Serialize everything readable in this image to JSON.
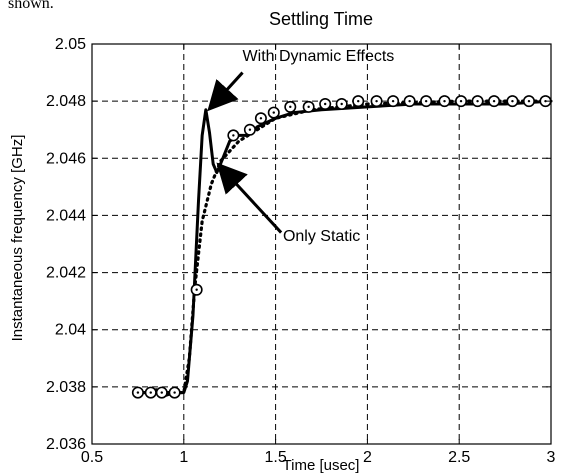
{
  "page": {
    "top_fragment": "shown."
  },
  "chart_data": {
    "type": "line",
    "title": "Settling Time",
    "xlabel": "Time [usec]",
    "ylabel": "Instantaneous frequency [GHz]",
    "xlim": [
      0.5,
      3
    ],
    "ylim": [
      2.036,
      2.05
    ],
    "x_ticks": [
      0.5,
      1,
      1.5,
      2,
      2.5,
      3
    ],
    "x_tick_labels": [
      "0.5",
      "1",
      "1.5",
      "2",
      "2.5",
      "3"
    ],
    "y_ticks": [
      2.036,
      2.038,
      2.04,
      2.042,
      2.044,
      2.046,
      2.048,
      2.05
    ],
    "y_tick_labels": [
      "2.036",
      "2.038",
      "2.04",
      "2.042",
      "2.044",
      "2.046",
      "2.048",
      "2.05"
    ],
    "grid": true,
    "series": [
      {
        "name": "With Dynamic Effects",
        "style": "solid",
        "color": "#000000",
        "points": [
          [
            0.75,
            2.0378
          ],
          [
            0.8,
            2.0378
          ],
          [
            0.85,
            2.0379
          ],
          [
            0.9,
            2.0377
          ],
          [
            0.95,
            2.0378
          ],
          [
            1.0,
            2.0378
          ],
          [
            1.02,
            2.0382
          ],
          [
            1.05,
            2.0405
          ],
          [
            1.08,
            2.0445
          ],
          [
            1.1,
            2.0468
          ],
          [
            1.12,
            2.0477
          ],
          [
            1.14,
            2.0469
          ],
          [
            1.16,
            2.0458
          ],
          [
            1.18,
            2.0455
          ],
          [
            1.2,
            2.0458
          ],
          [
            1.25,
            2.0466
          ],
          [
            1.3,
            2.0468
          ],
          [
            1.35,
            2.0468
          ],
          [
            1.4,
            2.0471
          ],
          [
            1.5,
            2.0474
          ],
          [
            1.6,
            2.0476
          ],
          [
            1.75,
            2.0477
          ],
          [
            2.0,
            2.0478
          ],
          [
            2.25,
            2.0479
          ],
          [
            2.5,
            2.0479
          ],
          [
            2.75,
            2.0479
          ],
          [
            3.0,
            2.048
          ]
        ]
      },
      {
        "name": "Only Static",
        "style": "dotted",
        "color": "#000000",
        "points": [
          [
            0.75,
            2.0378
          ],
          [
            0.85,
            2.0378
          ],
          [
            0.95,
            2.0378
          ],
          [
            1.0,
            2.0378
          ],
          [
            1.03,
            2.039
          ],
          [
            1.06,
            2.0415
          ],
          [
            1.1,
            2.0438
          ],
          [
            1.15,
            2.0451
          ],
          [
            1.2,
            2.0459
          ],
          [
            1.3,
            2.0466
          ],
          [
            1.4,
            2.047
          ],
          [
            1.5,
            2.0474
          ],
          [
            1.7,
            2.0477
          ],
          [
            2.0,
            2.0479
          ],
          [
            2.5,
            2.048
          ],
          [
            3.0,
            2.048
          ]
        ]
      },
      {
        "name": "circle-markers",
        "style": "markers",
        "color": "#000000",
        "points": [
          [
            0.75,
            2.0378
          ],
          [
            0.82,
            2.0378
          ],
          [
            0.88,
            2.0378
          ],
          [
            0.95,
            2.0378
          ],
          [
            1.07,
            2.0414
          ],
          [
            1.27,
            2.0468
          ],
          [
            1.36,
            2.047
          ],
          [
            1.42,
            2.0474
          ],
          [
            1.49,
            2.0476
          ],
          [
            1.58,
            2.0478
          ],
          [
            1.68,
            2.0478
          ],
          [
            1.77,
            2.0479
          ],
          [
            1.86,
            2.0479
          ],
          [
            1.95,
            2.048
          ],
          [
            2.05,
            2.048
          ],
          [
            2.14,
            2.048
          ],
          [
            2.23,
            2.048
          ],
          [
            2.32,
            2.048
          ],
          [
            2.42,
            2.048
          ],
          [
            2.51,
            2.048
          ],
          [
            2.6,
            2.048
          ],
          [
            2.69,
            2.048
          ],
          [
            2.79,
            2.048
          ],
          [
            2.88,
            2.048
          ],
          [
            2.97,
            2.048
          ]
        ]
      }
    ],
    "annotations": [
      {
        "text": "With Dynamic Effects",
        "text_at": [
          1.32,
          2.0494
        ],
        "arrow_from": [
          1.32,
          2.049
        ],
        "arrow_to": [
          1.15,
          2.0478
        ]
      },
      {
        "text": "Only Static",
        "text_at": [
          1.54,
          2.0431
        ],
        "arrow_from": [
          1.53,
          2.0434
        ],
        "arrow_to": [
          1.2,
          2.0457
        ]
      }
    ]
  }
}
